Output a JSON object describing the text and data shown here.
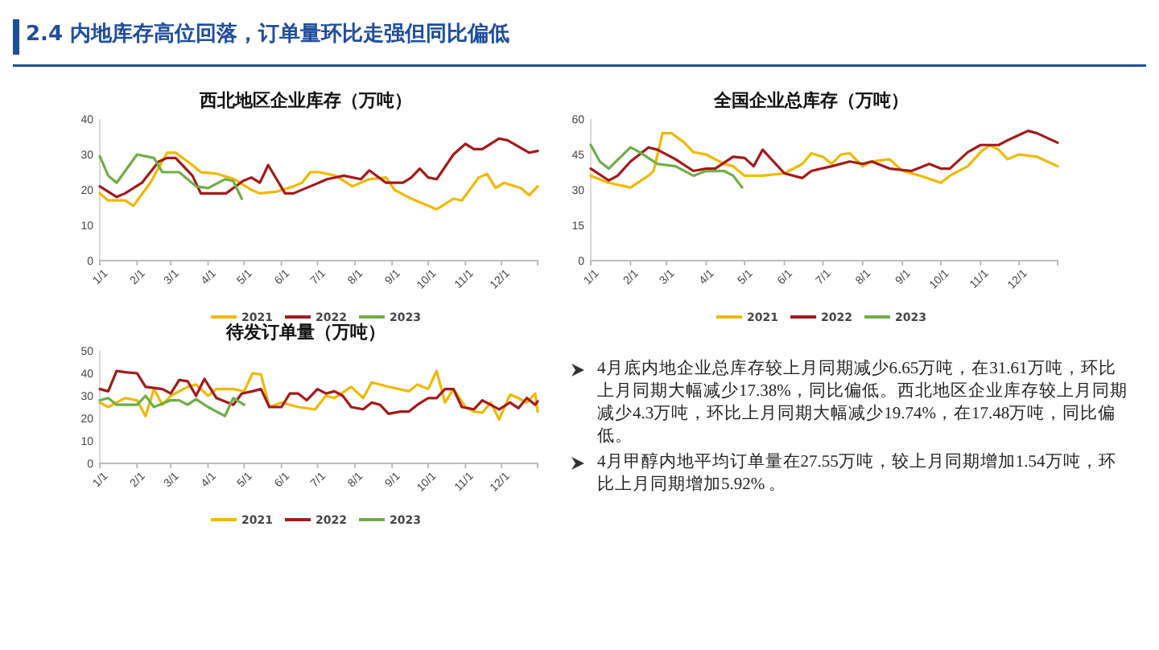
{
  "chart_data": [
    {
      "type": "line",
      "title": "西北地区企业库存（万吨）",
      "xlim": [
        "--01-01",
        "--12-31"
      ],
      "xticks": [
        {
          "value": "--01-01",
          "label": "1/1"
        },
        {
          "value": "--02-01",
          "label": "2/1"
        },
        {
          "value": "--03-01",
          "label": "3/1"
        },
        {
          "value": "--04-01",
          "label": "4/1"
        },
        {
          "value": "--05-01",
          "label": "5/1"
        },
        {
          "value": "--06-01",
          "label": "6/1"
        },
        {
          "value": "--07-01",
          "label": "7/1"
        },
        {
          "value": "--08-01",
          "label": "8/1"
        },
        {
          "value": "--09-01",
          "label": "9/1"
        },
        {
          "value": "--10-01",
          "label": "10/1"
        },
        {
          "value": "--11-01",
          "label": "11/1"
        },
        {
          "value": "--12-01",
          "label": "12/1"
        }
      ],
      "ylim": [
        0,
        40
      ],
      "yticks": [
        0,
        10,
        20,
        30,
        40
      ],
      "legend": "bottom",
      "series": [
        {
          "name": "2021",
          "color": "#f2b800",
          "x": [
            "--01-01",
            "--01-08",
            "--01-22",
            "--01-29",
            "--02-12",
            "--02-26",
            "--03-05",
            "--03-19",
            "--03-26",
            "--04-09",
            "--04-23",
            "--05-07",
            "--05-14",
            "--05-28",
            "--06-11",
            "--06-18",
            "--06-25",
            "--07-02",
            "--07-16",
            "--07-30",
            "--08-13",
            "--08-27",
            "--09-03",
            "--09-17",
            "--10-01",
            "--10-08",
            "--10-22",
            "--10-29",
            "--11-12",
            "--11-19",
            "--11-26",
            "--12-03",
            "--12-17",
            "--12-24",
            "--12-31"
          ],
          "values": [
            19,
            17,
            17,
            15.5,
            22,
            30.5,
            30.5,
            27,
            25,
            24.5,
            23,
            20,
            19,
            19.5,
            21,
            22,
            25,
            25,
            24,
            21,
            23,
            23.5,
            20,
            17.5,
            15.5,
            14.5,
            17.5,
            17,
            23.5,
            24.5,
            20.5,
            22,
            20.5,
            18.5,
            21
          ]
        },
        {
          "name": "2022",
          "color": "#a31a1a",
          "x": [
            "--01-01",
            "--01-15",
            "--01-22",
            "--02-05",
            "--02-19",
            "--02-26",
            "--03-05",
            "--03-19",
            "--03-26",
            "--04-16",
            "--04-30",
            "--05-07",
            "--05-14",
            "--05-21",
            "--06-04",
            "--06-11",
            "--06-25",
            "--07-09",
            "--07-23",
            "--08-06",
            "--08-13",
            "--08-27",
            "--09-10",
            "--09-17",
            "--09-24",
            "--10-01",
            "--10-08",
            "--10-22",
            "--11-01",
            "--11-08",
            "--11-15",
            "--11-29",
            "--12-06",
            "--12-24",
            "--12-31"
          ],
          "values": [
            21,
            18,
            19,
            22,
            28,
            29,
            29,
            24,
            19,
            19,
            22.5,
            23.5,
            22,
            27,
            19,
            19,
            21,
            23,
            24,
            23,
            25.5,
            22,
            22,
            23.5,
            26,
            23.5,
            23,
            30,
            33,
            31.5,
            31.5,
            34.5,
            34,
            30.5,
            31
          ]
        },
        {
          "name": "2023",
          "color": "#70ad47",
          "x": [
            "--01-01",
            "--01-08",
            "--01-15",
            "--02-01",
            "--02-15",
            "--02-22",
            "--03-08",
            "--03-22",
            "--04-01",
            "--04-15",
            "--04-22",
            "--04-29"
          ],
          "values": [
            29.5,
            24,
            22,
            30,
            29,
            25,
            25,
            21,
            20.5,
            23,
            22.5,
            17.5
          ]
        }
      ]
    },
    {
      "type": "line",
      "title": "全国企业总库存（万吨）",
      "xlim": [
        "--01-01",
        "--12-31"
      ],
      "xticks": [
        {
          "value": "--01-01",
          "label": "1/1"
        },
        {
          "value": "--02-01",
          "label": "2/1"
        },
        {
          "value": "--03-01",
          "label": "3/1"
        },
        {
          "value": "--04-01",
          "label": "4/1"
        },
        {
          "value": "--05-01",
          "label": "5/1"
        },
        {
          "value": "--06-01",
          "label": "6/1"
        },
        {
          "value": "--07-01",
          "label": "7/1"
        },
        {
          "value": "--08-01",
          "label": "8/1"
        },
        {
          "value": "--09-01",
          "label": "9/1"
        },
        {
          "value": "--10-01",
          "label": "10/1"
        },
        {
          "value": "--11-01",
          "label": "11/1"
        },
        {
          "value": "--12-01",
          "label": "12/1"
        }
      ],
      "ylim": [
        0,
        60
      ],
      "yticks": [
        0,
        15,
        30,
        45,
        60
      ],
      "legend": "bottom",
      "series": [
        {
          "name": "2021",
          "color": "#f2b800",
          "x": [
            "--01-01",
            "--01-15",
            "--02-01",
            "--02-15",
            "--02-19",
            "--02-26",
            "--03-05",
            "--03-15",
            "--03-22",
            "--04-01",
            "--04-15",
            "--04-22",
            "--05-01",
            "--05-15",
            "--06-01",
            "--06-15",
            "--06-22",
            "--07-01",
            "--07-08",
            "--07-15",
            "--07-22",
            "--08-01",
            "--08-08",
            "--08-22",
            "--09-01",
            "--09-15",
            "--10-01",
            "--10-08",
            "--10-22",
            "--11-01",
            "--11-08",
            "--11-15",
            "--11-22",
            "--12-01",
            "--12-15",
            "--12-31"
          ],
          "values": [
            36,
            33,
            31,
            36,
            38,
            54,
            54,
            50,
            46,
            45,
            41,
            40,
            36,
            36,
            37,
            41,
            45.5,
            44,
            41,
            45,
            45.5,
            40,
            42,
            43,
            38,
            36,
            33,
            36,
            40,
            46,
            49,
            47,
            43,
            45,
            44,
            40
          ]
        },
        {
          "name": "2022",
          "color": "#a31a1a",
          "x": [
            "--01-01",
            "--01-15",
            "--01-22",
            "--02-01",
            "--02-15",
            "--02-22",
            "--03-08",
            "--03-22",
            "--04-01",
            "--04-08",
            "--04-22",
            "--05-01",
            "--05-08",
            "--05-15",
            "--06-01",
            "--06-15",
            "--06-22",
            "--07-08",
            "--07-22",
            "--08-01",
            "--08-08",
            "--08-22",
            "--09-08",
            "--09-22",
            "--10-01",
            "--10-08",
            "--10-22",
            "--11-01",
            "--11-15",
            "--11-22",
            "--12-08",
            "--12-15",
            "--12-31"
          ],
          "values": [
            39,
            34,
            36,
            42,
            48,
            47,
            43,
            38,
            39,
            39,
            44,
            43.5,
            40,
            47,
            37,
            35,
            38,
            40,
            42,
            41,
            42,
            39,
            38,
            41,
            39,
            39,
            46,
            49,
            49,
            51,
            55,
            54,
            50
          ]
        },
        {
          "name": "2023",
          "color": "#70ad47",
          "x": [
            "--01-01",
            "--01-08",
            "--01-15",
            "--02-01",
            "--02-08",
            "--02-22",
            "--03-08",
            "--03-22",
            "--04-01",
            "--04-15",
            "--04-22",
            "--04-29"
          ],
          "values": [
            49,
            42,
            39,
            48,
            46,
            41,
            40,
            36,
            38,
            38,
            36,
            31
          ]
        }
      ]
    },
    {
      "type": "line",
      "title": "待发订单量（万吨）",
      "xlim": [
        "--01-01",
        "--12-31"
      ],
      "xticks": [
        {
          "value": "--01-01",
          "label": "1/1"
        },
        {
          "value": "--02-01",
          "label": "2/1"
        },
        {
          "value": "--03-01",
          "label": "3/1"
        },
        {
          "value": "--04-01",
          "label": "4/1"
        },
        {
          "value": "--05-01",
          "label": "5/1"
        },
        {
          "value": "--06-01",
          "label": "6/1"
        },
        {
          "value": "--07-01",
          "label": "7/1"
        },
        {
          "value": "--08-01",
          "label": "8/1"
        },
        {
          "value": "--09-01",
          "label": "9/1"
        },
        {
          "value": "--10-01",
          "label": "10/1"
        },
        {
          "value": "--11-01",
          "label": "11/1"
        },
        {
          "value": "--12-01",
          "label": "12/1"
        }
      ],
      "ylim": [
        0,
        50
      ],
      "yticks": [
        0,
        10,
        20,
        30,
        40,
        50
      ],
      "legend": "bottom",
      "series": [
        {
          "name": "2021",
          "color": "#f2b800",
          "x": [
            "--01-01",
            "--01-08",
            "--01-22",
            "--02-01",
            "--02-08",
            "--02-15",
            "--02-22",
            "--03-01",
            "--03-15",
            "--03-22",
            "--04-01",
            "--04-08",
            "--04-22",
            "--05-01",
            "--05-08",
            "--05-15",
            "--05-22",
            "--06-01",
            "--06-15",
            "--06-29",
            "--07-08",
            "--07-15",
            "--07-29",
            "--08-08",
            "--08-15",
            "--08-29",
            "--09-15",
            "--09-22",
            "--10-01",
            "--10-08",
            "--10-15",
            "--10-22",
            "--11-01",
            "--11-08",
            "--11-15",
            "--11-22",
            "--11-29",
            "--12-08",
            "--12-15",
            "--12-22",
            "--12-29",
            "--12-31"
          ],
          "values": [
            27,
            25,
            29,
            28,
            21,
            33,
            26,
            30,
            34,
            35,
            30,
            33,
            33,
            32,
            40,
            39.5,
            25,
            27,
            25,
            24,
            30,
            29,
            34,
            29,
            36,
            34,
            32,
            35,
            33,
            41,
            27,
            33,
            25,
            23,
            22.5,
            27,
            19.5,
            30.5,
            29,
            27,
            31,
            23
          ]
        },
        {
          "name": "2022",
          "color": "#a31a1a",
          "x": [
            "--01-01",
            "--01-08",
            "--01-15",
            "--01-22",
            "--02-01",
            "--02-08",
            "--02-22",
            "--03-01",
            "--03-08",
            "--03-15",
            "--03-22",
            "--03-29",
            "--04-08",
            "--04-22",
            "--04-29",
            "--05-08",
            "--05-15",
            "--05-22",
            "--06-01",
            "--06-08",
            "--06-15",
            "--06-22",
            "--07-01",
            "--07-08",
            "--07-15",
            "--07-22",
            "--07-29",
            "--08-08",
            "--08-15",
            "--08-22",
            "--08-29",
            "--09-08",
            "--09-15",
            "--09-22",
            "--10-01",
            "--10-08",
            "--10-15",
            "--10-22",
            "--10-29",
            "--11-08",
            "--11-15",
            "--11-29",
            "--12-08",
            "--12-15",
            "--12-22",
            "--12-29",
            "--12-31"
          ],
          "values": [
            33,
            32,
            41,
            40.5,
            40,
            34,
            33,
            31,
            37,
            36.5,
            30,
            37.5,
            29,
            26,
            31,
            32,
            33,
            25,
            25,
            31,
            31,
            28,
            33,
            31,
            32,
            30,
            25,
            24,
            27,
            26,
            22,
            23,
            23,
            26,
            29,
            29,
            33,
            33,
            25,
            24,
            28,
            24,
            27,
            24.5,
            29,
            26,
            27.5
          ]
        },
        {
          "name": "2023",
          "color": "#70ad47",
          "x": [
            "--01-01",
            "--01-08",
            "--01-15",
            "--02-01",
            "--02-08",
            "--02-15",
            "--03-01",
            "--03-08",
            "--03-15",
            "--03-22",
            "--04-01",
            "--04-15",
            "--04-22",
            "--05-01"
          ],
          "values": [
            28,
            29,
            26,
            26,
            30,
            25,
            28,
            28,
            26,
            28.5,
            25,
            21,
            29,
            26
          ]
        }
      ]
    },
    {
      "type": "other",
      "title": "2.4 内地库存高位回落，订单量环比走强但同比偏低",
      "annotations": [
        "4月底内地企业总库存较上月同期减少6.65万吨，在31.61万吨，环比上月同期大幅减少17.38%，同比偏低。西北地区企业库存较上月同期减少4.3万吨，环比上月同期大幅减少19.74%，在17.48万吨，同比偏低。",
        "4月甲醇内地平均订单量在27.55万吨，较上月同期增加1.54万吨，环比上月同期增加5.92% 。"
      ]
    }
  ]
}
